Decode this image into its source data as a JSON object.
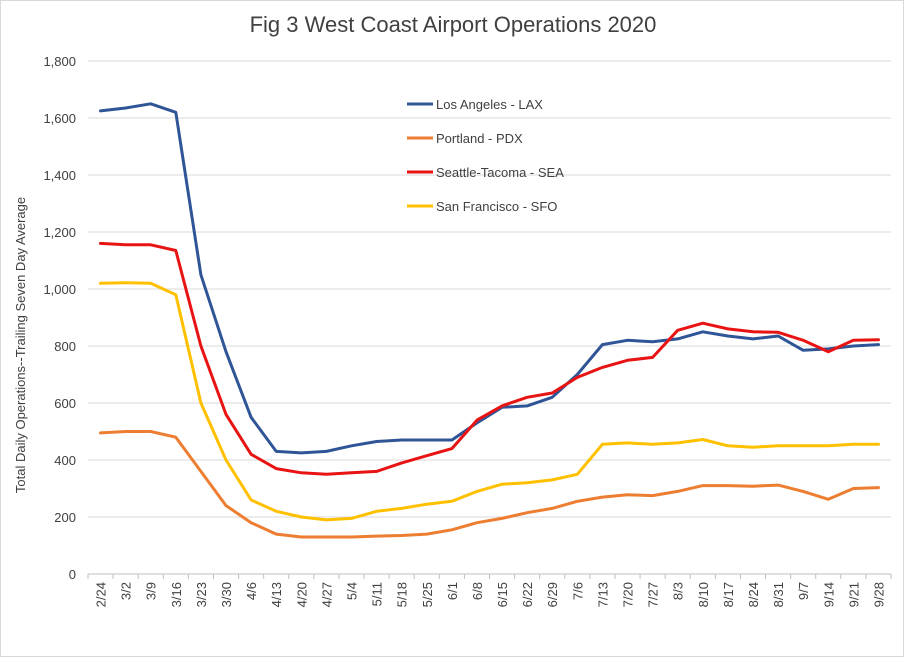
{
  "chart_data": {
    "type": "line",
    "title": "Fig 3 West Coast Airport Operations 2020",
    "xlabel": "",
    "ylabel": "Total Daily Operations--Trailing Seven Day Average",
    "ylim": [
      0,
      1800
    ],
    "yticks": [
      0,
      200,
      400,
      600,
      800,
      1000,
      1200,
      1400,
      1600,
      1800
    ],
    "ytick_labels": [
      "0",
      "200",
      "400",
      "600",
      "800",
      "1,000",
      "1,200",
      "1,400",
      "1,600",
      "1,800"
    ],
    "grid": true,
    "legend_position": "top-center",
    "categories": [
      "2/24",
      "3/2",
      "3/9",
      "3/16",
      "3/23",
      "3/30",
      "4/6",
      "4/13",
      "4/20",
      "4/27",
      "5/4",
      "5/11",
      "5/18",
      "5/25",
      "6/1",
      "6/8",
      "6/15",
      "6/22",
      "6/29",
      "7/6",
      "7/13",
      "7/20",
      "7/27",
      "8/3",
      "8/10",
      "8/17",
      "8/24",
      "8/31",
      "9/7",
      "9/14",
      "9/21",
      "9/28"
    ],
    "series": [
      {
        "name": "Los Angeles - LAX",
        "color": "#2F5597",
        "values": [
          1625,
          1635,
          1650,
          1620,
          1050,
          780,
          550,
          430,
          425,
          430,
          450,
          465,
          470,
          470,
          470,
          530,
          585,
          590,
          620,
          700,
          805,
          820,
          815,
          825,
          850,
          835,
          825,
          835,
          785,
          790,
          800,
          805
        ]
      },
      {
        "name": "Portland - PDX",
        "color": "#ED7D31",
        "values": [
          495,
          500,
          500,
          480,
          360,
          240,
          180,
          140,
          130,
          130,
          130,
          133,
          135,
          140,
          155,
          180,
          195,
          215,
          230,
          255,
          270,
          278,
          275,
          290,
          310,
          310,
          308,
          312,
          290,
          262,
          300,
          303
        ]
      },
      {
        "name": "Seattle-Tacoma - SEA",
        "color": "#E81414",
        "values": [
          1160,
          1155,
          1155,
          1135,
          800,
          560,
          420,
          370,
          355,
          350,
          355,
          360,
          390,
          415,
          440,
          540,
          590,
          620,
          635,
          690,
          725,
          750,
          760,
          855,
          880,
          860,
          850,
          848,
          820,
          780,
          820,
          822
        ]
      },
      {
        "name": "San Francisco - SFO",
        "color": "#FFC000",
        "values": [
          1020,
          1022,
          1020,
          980,
          600,
          400,
          260,
          220,
          200,
          190,
          195,
          220,
          230,
          245,
          255,
          290,
          315,
          320,
          330,
          350,
          455,
          460,
          455,
          460,
          472,
          450,
          445,
          450,
          450,
          450,
          455,
          455
        ]
      }
    ]
  }
}
